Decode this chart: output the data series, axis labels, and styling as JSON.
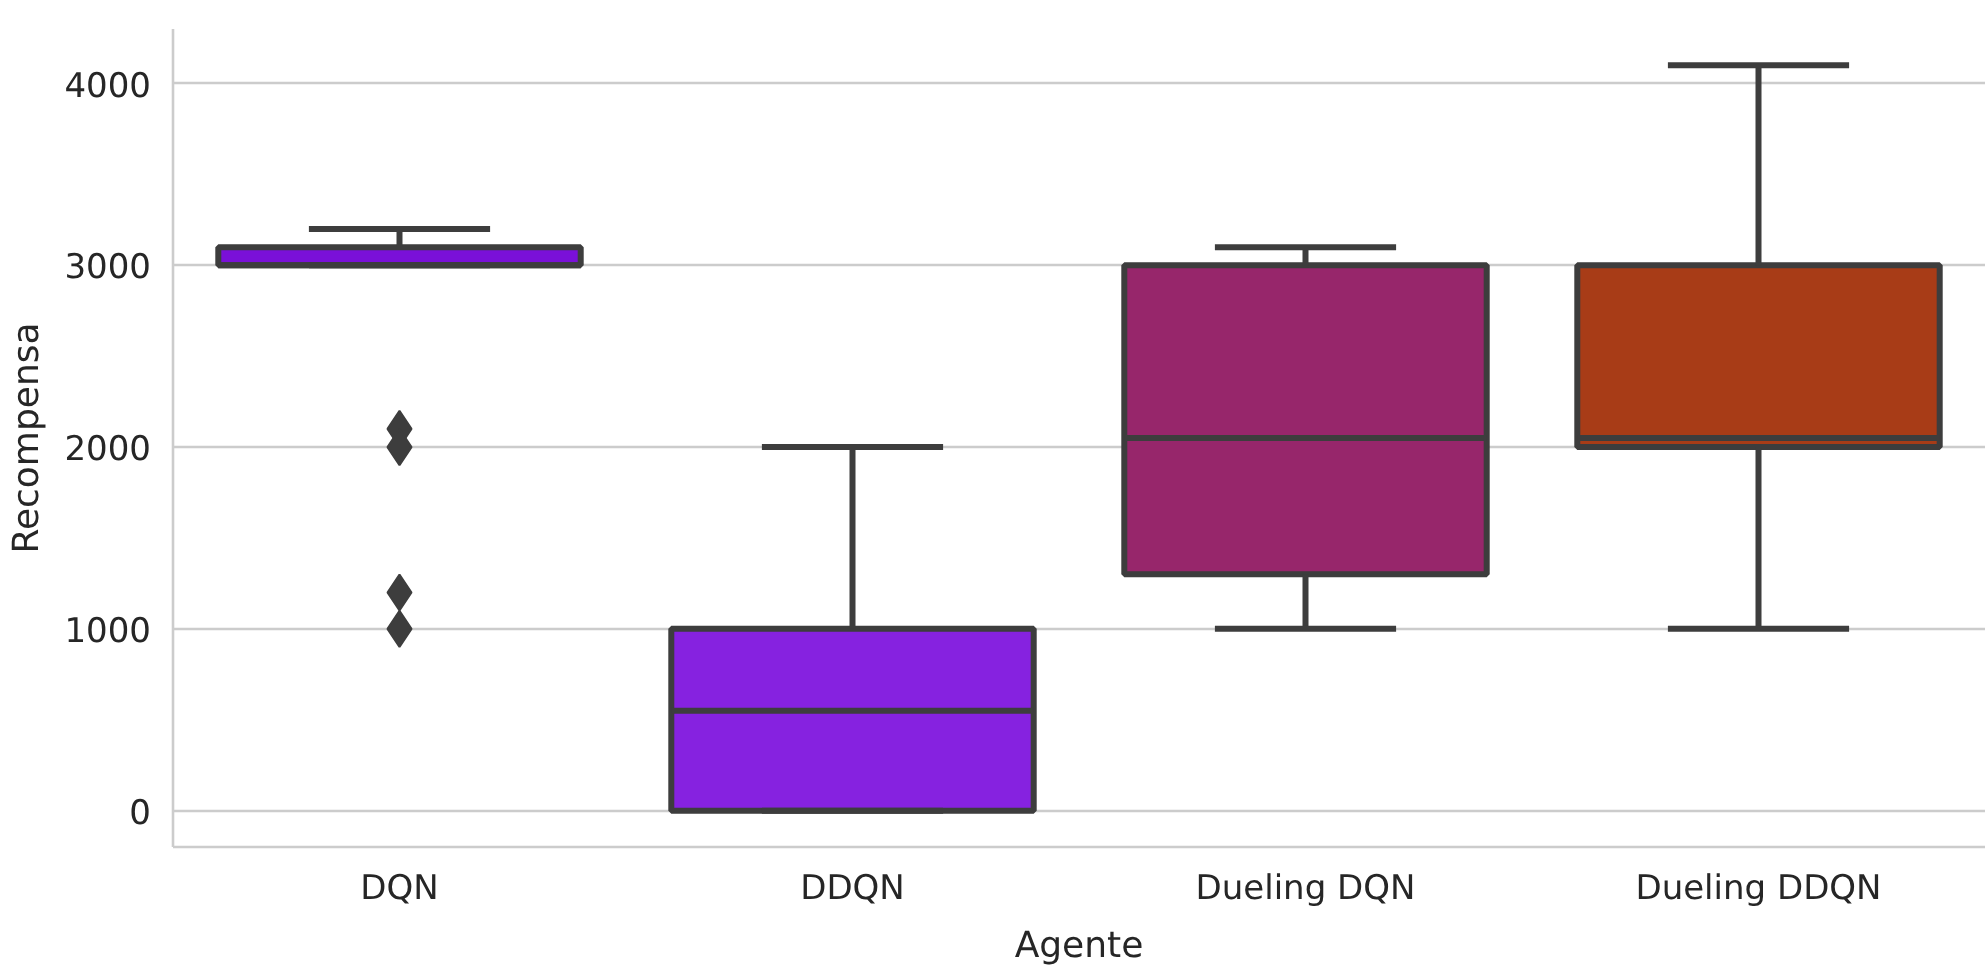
{
  "chart_data": {
    "type": "box",
    "xlabel": "Agente",
    "ylabel": "Recompensa",
    "categories": [
      "DQN",
      "DDQN",
      "Dueling DQN",
      "Dueling DDQN"
    ],
    "colors": [
      "#7a10d8",
      "#8622e0",
      "#97266b",
      "#a83c17"
    ],
    "boxes": [
      {
        "low": 3000,
        "q1": 3000,
        "median": 3000,
        "q3": 3100,
        "high": 3200,
        "outliers": [
          2100,
          2000,
          1200,
          1000
        ]
      },
      {
        "low": 0,
        "q1": 0,
        "median": 550,
        "q3": 1000,
        "high": 2000
      },
      {
        "low": 1000,
        "q1": 1300,
        "median": 2050,
        "q3": 3000,
        "high": 3100
      },
      {
        "low": 1000,
        "q1": 2000,
        "median": 2050,
        "q3": 3000,
        "high": 4100
      }
    ],
    "ylim": [
      -200,
      4300
    ],
    "yticks": [
      0,
      1000,
      2000,
      3000,
      4000
    ],
    "grid": "y",
    "marker": "diamond"
  }
}
